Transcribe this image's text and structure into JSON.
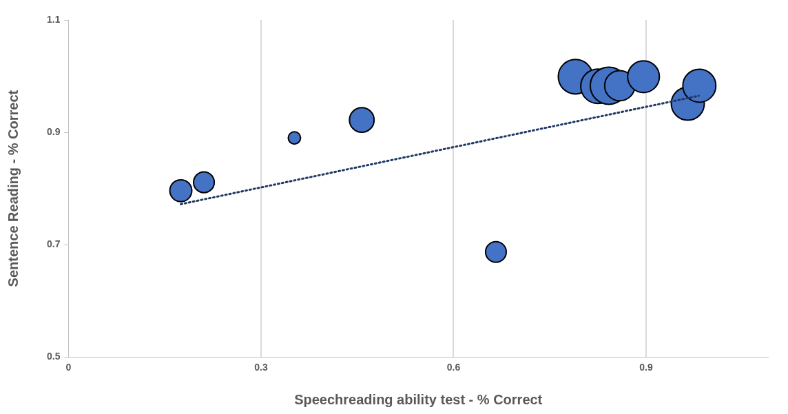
{
  "chart_data": {
    "type": "bubble",
    "xlabel": "Speechreading ability test - % Correct",
    "ylabel": "Sentence Reading - % Correct",
    "xlim": [
      0,
      1.09
    ],
    "xticks": [
      0,
      0.3,
      0.6,
      0.9
    ],
    "ylim": [
      0.5,
      1.1
    ],
    "yticks": [
      0.5,
      0.7,
      0.9,
      1.1
    ],
    "grid": "x",
    "legend": false,
    "series": [
      {
        "color": "#4472c4",
        "x": [
          0.175,
          0.211,
          0.352,
          0.457,
          0.666,
          0.79,
          0.825,
          0.842,
          0.859,
          0.896,
          0.965,
          0.983
        ],
        "values": [
          0.796,
          0.811,
          0.89,
          0.922,
          0.687,
          0.999,
          0.982,
          0.983,
          0.983,
          0.999,
          0.951,
          0.983
        ],
        "sizes": [
          0.35,
          0.31,
          0.11,
          0.44,
          0.31,
          0.86,
          0.86,
          1,
          0.66,
          0.73,
          0.79,
          0.79
        ]
      },
      {
        "type": "line",
        "color": "#1f3864",
        "line_style": "dotted",
        "marker": "none",
        "x": [
          0.175,
          0.982
        ],
        "values": [
          0.772,
          0.965
        ]
      }
    ]
  }
}
